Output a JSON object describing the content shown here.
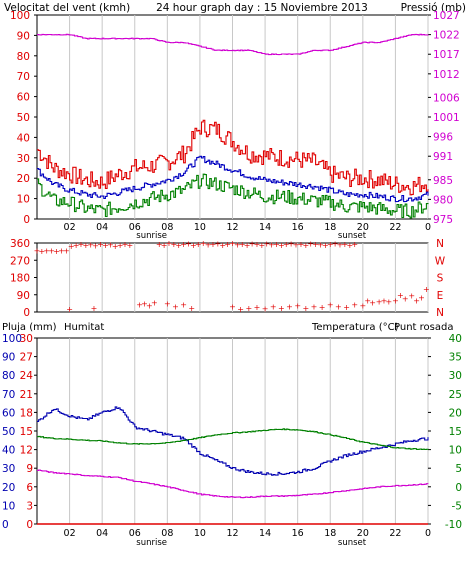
{
  "header": {
    "left_label": "Velocitat del vent (kmh)",
    "title": "24 hour graph day : 15 Noviembre 2013",
    "right_label": "Pressió (mb)"
  },
  "wind_dir_labels": [
    "N",
    "W",
    "S",
    "E",
    "N"
  ],
  "bottom_header": {
    "rain_label": "Pluja (mm)",
    "humidity_label": "Humitat",
    "temp_label": "Temperatura (°C)",
    "dew_label": "Punt rosada"
  },
  "colors": {
    "wind_gust": "#e00000",
    "wind_avg": "#0000c0",
    "wind_min": "#008000",
    "pressure": "#d000d0",
    "direction": "#e00000",
    "humidity": "#0000b0",
    "temperature": "#008000",
    "dewpoint": "#d000d0",
    "rain": "#e00000",
    "grid": "#c8c8c8",
    "frame": "#000000",
    "rain_axis": "#e00000",
    "humidity_axis": "#0000b0",
    "temp_axis": "#008000",
    "tick_text": "#000000"
  },
  "chart_data": [
    {
      "type": "line",
      "panel": "wind_pressure",
      "x_ticks": [
        "02",
        "04",
        "06",
        "08",
        "10",
        "12",
        "14",
        "16",
        "18",
        "20",
        "22",
        "0"
      ],
      "x_annotations": [
        {
          "text": "sunrise",
          "at_hour": 6.3
        },
        {
          "text": "sunset",
          "at_hour": 18.6
        }
      ],
      "y_left": {
        "label": "Velocitat del vent (kmh)",
        "ticks": [
          0,
          10,
          20,
          30,
          40,
          50,
          60,
          70,
          80,
          90,
          100
        ],
        "range": [
          0,
          100
        ]
      },
      "y_right": {
        "label": "Pressió (mb)",
        "ticks": [
          975,
          980,
          985,
          991,
          996,
          1001,
          1006,
          1012,
          1017,
          1022,
          1027
        ],
        "range": [
          975,
          1027
        ]
      },
      "x_hours": [
        0,
        1,
        2,
        3,
        4,
        5,
        6,
        7,
        8,
        9,
        10,
        11,
        12,
        13,
        14,
        15,
        16,
        17,
        18,
        19,
        20,
        21,
        22,
        23,
        24
      ],
      "series": [
        {
          "key": "wind_gust",
          "axis": "left",
          "values": [
            34,
            25,
            22,
            19,
            18,
            22,
            25,
            26,
            28,
            32,
            45,
            44,
            38,
            32,
            31,
            30,
            29,
            28,
            22,
            20,
            20,
            19,
            17,
            16,
            18
          ]
        },
        {
          "key": "wind_avg",
          "axis": "left",
          "values": [
            24,
            17,
            14,
            12,
            11,
            13,
            15,
            17,
            19,
            23,
            30,
            27,
            24,
            21,
            19,
            18,
            17,
            16,
            14,
            12,
            12,
            11,
            10,
            10,
            12
          ]
        },
        {
          "key": "wind_min",
          "axis": "left",
          "values": [
            17,
            9,
            8,
            5,
            4,
            6,
            8,
            10,
            12,
            14,
            19,
            17,
            15,
            13,
            11,
            11,
            10,
            9,
            8,
            6,
            6,
            5,
            4,
            4,
            7
          ]
        },
        {
          "key": "pressure",
          "axis": "right",
          "values": [
            1022,
            1022,
            1022,
            1021,
            1021,
            1021,
            1021,
            1021,
            1020,
            1020,
            1019,
            1018,
            1018,
            1018,
            1017,
            1017,
            1017,
            1018,
            1018,
            1019,
            1020,
            1020,
            1021,
            1022,
            1022
          ]
        }
      ]
    },
    {
      "type": "scatter",
      "panel": "wind_direction",
      "y": {
        "ticks": [
          0,
          90,
          180,
          270,
          360
        ],
        "range": [
          0,
          360
        ]
      },
      "points": [
        [
          0.0,
          320
        ],
        [
          0.3,
          318
        ],
        [
          0.6,
          320
        ],
        [
          0.9,
          322
        ],
        [
          1.2,
          319
        ],
        [
          1.5,
          321
        ],
        [
          1.8,
          320
        ],
        [
          2.1,
          345
        ],
        [
          2.4,
          350
        ],
        [
          2.7,
          355
        ],
        [
          3.0,
          350
        ],
        [
          3.3,
          352
        ],
        [
          3.6,
          348
        ],
        [
          3.9,
          355
        ],
        [
          4.2,
          350
        ],
        [
          4.5,
          352
        ],
        [
          4.8,
          345
        ],
        [
          5.1,
          350
        ],
        [
          5.4,
          355
        ],
        [
          5.7,
          350
        ],
        [
          2.0,
          15
        ],
        [
          3.5,
          20
        ],
        [
          6.3,
          40
        ],
        [
          6.6,
          45
        ],
        [
          6.9,
          35
        ],
        [
          7.2,
          50
        ],
        [
          7.5,
          355
        ],
        [
          7.8,
          350
        ],
        [
          8.1,
          360
        ],
        [
          8.4,
          355
        ],
        [
          8.7,
          350
        ],
        [
          9.0,
          355
        ],
        [
          9.3,
          358
        ],
        [
          9.6,
          350
        ],
        [
          9.9,
          355
        ],
        [
          10.2,
          360
        ],
        [
          10.5,
          352
        ],
        [
          10.8,
          355
        ],
        [
          11.1,
          358
        ],
        [
          11.4,
          350
        ],
        [
          11.7,
          355
        ],
        [
          12.0,
          360
        ],
        [
          12.3,
          352
        ],
        [
          12.6,
          355
        ],
        [
          12.9,
          350
        ],
        [
          13.2,
          358
        ],
        [
          13.5,
          355
        ],
        [
          13.8,
          350
        ],
        [
          14.1,
          358
        ],
        [
          14.4,
          352
        ],
        [
          14.7,
          355
        ],
        [
          15.0,
          350
        ],
        [
          15.3,
          355
        ],
        [
          15.6,
          358
        ],
        [
          15.9,
          352
        ],
        [
          16.2,
          355
        ],
        [
          16.5,
          350
        ],
        [
          16.8,
          358
        ],
        [
          17.1,
          355
        ],
        [
          17.4,
          352
        ],
        [
          17.7,
          350
        ],
        [
          18.0,
          355
        ],
        [
          18.3,
          358
        ],
        [
          18.6,
          352
        ],
        [
          18.9,
          355
        ],
        [
          19.2,
          350
        ],
        [
          19.5,
          356
        ],
        [
          8.0,
          45
        ],
        [
          8.5,
          30
        ],
        [
          9.0,
          40
        ],
        [
          9.5,
          20
        ],
        [
          12.0,
          30
        ],
        [
          12.5,
          15
        ],
        [
          13.0,
          20
        ],
        [
          13.5,
          25
        ],
        [
          14.0,
          18
        ],
        [
          14.5,
          30
        ],
        [
          15.0,
          22
        ],
        [
          15.5,
          28
        ],
        [
          16.0,
          35
        ],
        [
          16.5,
          20
        ],
        [
          17.0,
          30
        ],
        [
          17.5,
          25
        ],
        [
          18.0,
          40
        ],
        [
          18.5,
          30
        ],
        [
          19.0,
          25
        ],
        [
          19.5,
          40
        ],
        [
          20.0,
          35
        ],
        [
          20.3,
          60
        ],
        [
          20.6,
          50
        ],
        [
          21.0,
          55
        ],
        [
          21.3,
          60
        ],
        [
          21.6,
          55
        ],
        [
          22.0,
          60
        ],
        [
          22.3,
          90
        ],
        [
          22.6,
          70
        ],
        [
          23.0,
          85
        ],
        [
          23.3,
          60
        ],
        [
          23.6,
          75
        ],
        [
          23.9,
          120
        ]
      ]
    },
    {
      "type": "line",
      "panel": "humidity_temperature",
      "x_ticks": [
        "02",
        "04",
        "06",
        "08",
        "10",
        "12",
        "14",
        "16",
        "18",
        "20",
        "22",
        "0"
      ],
      "x_annotations": [
        {
          "text": "sunrise",
          "at_hour": 6.3
        },
        {
          "text": "sunset",
          "at_hour": 18.6
        }
      ],
      "y_left_rain": {
        "label": "Pluja (mm)",
        "ticks": [
          0,
          3,
          6,
          9,
          12,
          15,
          18,
          21,
          24,
          27,
          30
        ],
        "range": [
          0,
          30
        ]
      },
      "y_left_humidity": {
        "label": "Humitat",
        "ticks": [
          0,
          10,
          20,
          30,
          40,
          50,
          60,
          70,
          80,
          90,
          100
        ],
        "range": [
          0,
          100
        ]
      },
      "y_right": {
        "label": "Temperatura (°C)",
        "ticks": [
          -10,
          -5,
          0,
          5,
          10,
          15,
          20,
          25,
          30,
          35,
          40
        ],
        "range": [
          -10,
          40
        ]
      },
      "x_hours": [
        0,
        1,
        2,
        3,
        4,
        5,
        6,
        7,
        8,
        9,
        10,
        11,
        12,
        13,
        14,
        15,
        16,
        17,
        18,
        19,
        20,
        21,
        22,
        23,
        24
      ],
      "series": [
        {
          "key": "humidity",
          "axis": "humidity",
          "values": [
            55,
            62,
            58,
            56,
            60,
            63,
            52,
            50,
            48,
            46,
            38,
            34,
            30,
            28,
            27,
            27,
            28,
            30,
            34,
            37,
            39,
            41,
            43,
            45,
            46
          ]
        },
        {
          "key": "temperature",
          "axis": "temp",
          "values": [
            13.5,
            13.0,
            12.8,
            12.5,
            12.3,
            11.8,
            11.5,
            11.6,
            11.8,
            12.5,
            13.2,
            14.0,
            14.5,
            14.8,
            15.2,
            15.5,
            15.3,
            14.8,
            14.0,
            13.0,
            12.0,
            11.2,
            10.5,
            10.2,
            10.0
          ]
        },
        {
          "key": "dewpoint",
          "axis": "temp",
          "values": [
            4.5,
            3.8,
            3.5,
            3.0,
            2.8,
            2.5,
            1.5,
            0.8,
            0.0,
            -1.0,
            -2.0,
            -2.5,
            -2.8,
            -2.8,
            -2.5,
            -2.5,
            -2.3,
            -2.0,
            -1.5,
            -1.0,
            -0.5,
            0.0,
            0.3,
            0.5,
            0.8
          ]
        },
        {
          "key": "rain",
          "axis": "rain",
          "values": [
            0,
            0,
            0,
            0,
            0,
            0,
            0,
            0,
            0,
            0,
            0,
            0,
            0,
            0,
            0,
            0,
            0,
            0,
            0,
            0,
            0,
            0,
            0,
            0,
            0
          ]
        }
      ]
    }
  ]
}
